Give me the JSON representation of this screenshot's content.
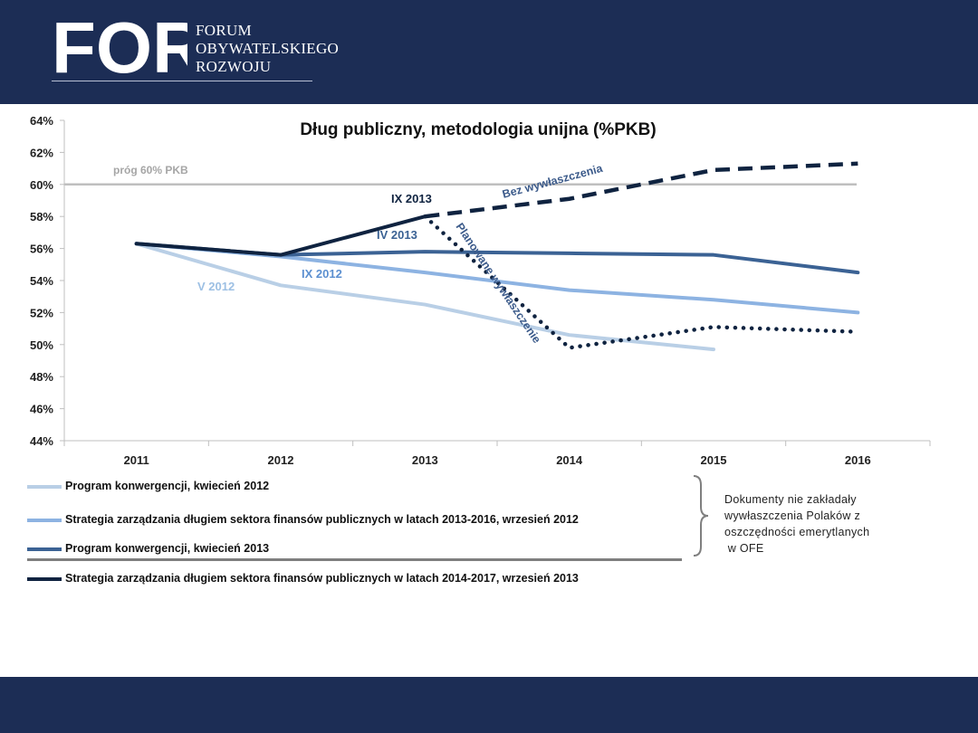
{
  "header": {
    "logo_letters": "FOR",
    "logo_lines": [
      "FORUM",
      "OBYWATELSKIEGO",
      "ROZWOJU"
    ]
  },
  "colors": {
    "brand_navy": "#1c2d55",
    "series_2012_04": "#b9cfe6",
    "series_2012_09": "#8db3e2",
    "series_2013_04": "#3b6294",
    "series_2013_09": "#0f2340",
    "threshold": "#bfbfbf"
  },
  "chart_data": {
    "type": "line",
    "title": "Dług publiczny, metodologia unijna (%PKB)",
    "categories": [
      "2011",
      "2012",
      "2013",
      "2014",
      "2015",
      "2016"
    ],
    "ylim": [
      44,
      64
    ],
    "y_ticks": [
      "44%",
      "46%",
      "48%",
      "50%",
      "52%",
      "54%",
      "56%",
      "58%",
      "60%",
      "62%",
      "64%"
    ],
    "threshold": {
      "value": 60,
      "label": "próg 60% PKB"
    },
    "series": [
      {
        "name": "Program konwergencji, kwiecień 2012",
        "x": [
          "2011",
          "2012",
          "2013",
          "2014",
          "2015"
        ],
        "values": [
          56.3,
          53.7,
          52.5,
          50.6,
          49.7
        ],
        "style": "solid",
        "color": "#b9cfe6"
      },
      {
        "name": "Strategia zarządzania długiem sektora finansów publicznych w latach 2013-2016, wrzesień 2012",
        "x": [
          "2011",
          "2012",
          "2013",
          "2014",
          "2015",
          "2016"
        ],
        "values": [
          56.3,
          55.5,
          54.5,
          53.4,
          52.8,
          52.0
        ],
        "style": "solid",
        "color": "#8db3e2"
      },
      {
        "name": "Program konwergencji, kwiecień 2013",
        "x": [
          "2011",
          "2012",
          "2013",
          "2014",
          "2015",
          "2016"
        ],
        "values": [
          56.3,
          55.6,
          55.8,
          55.7,
          55.6,
          54.5
        ],
        "style": "solid",
        "color": "#3b6294"
      },
      {
        "name": "Strategia zarządzania długiem sektora finansów publicznych w latach 2014-2017, wrzesień 2013",
        "x": [
          "2011",
          "2012",
          "2013"
        ],
        "values": [
          56.3,
          55.6,
          58.0
        ],
        "style": "solid",
        "color": "#0f2340"
      },
      {
        "name": "Bez wywłaszczenia",
        "x": [
          "2013",
          "2014",
          "2015",
          "2016"
        ],
        "values": [
          58.0,
          59.1,
          60.9,
          61.3
        ],
        "style": "dashed",
        "color": "#0f2340"
      },
      {
        "name": "Planowane wywłaszczenie",
        "x": [
          "2013",
          "2014",
          "2015",
          "2016"
        ],
        "values": [
          58.0,
          49.8,
          51.1,
          50.8
        ],
        "style": "dotted",
        "color": "#0f2340"
      }
    ],
    "annotations": [
      {
        "text": "V 2012",
        "color": "#9dc0e4"
      },
      {
        "text": "IX 2012",
        "color": "#5b8fd0"
      },
      {
        "text": "IV 2013",
        "color": "#3b6294"
      },
      {
        "text": "IX 2013",
        "color": "#0f2340"
      },
      {
        "text": "Bez wywłaszczenia",
        "color": "#3b5a8a"
      },
      {
        "text": "Planowane wywłaszczenie",
        "color": "#3b5a8a"
      }
    ]
  },
  "legend_items": [
    "Program konwergencji, kwiecień 2012",
    "Strategia zarządzania długiem sektora finansów publicznych w latach 2013-2016, wrzesień 2012",
    "Program konwergencji, kwiecień 2013",
    "Strategia zarządzania długiem sektora finansów publicznych w latach 2014-2017, wrzesień 2013"
  ],
  "side_note": {
    "lines": [
      "Dokumenty  nie zakładały",
      "wywłaszczenia Polaków z",
      "oszczędności emerytlanych",
      " w OFE"
    ]
  }
}
